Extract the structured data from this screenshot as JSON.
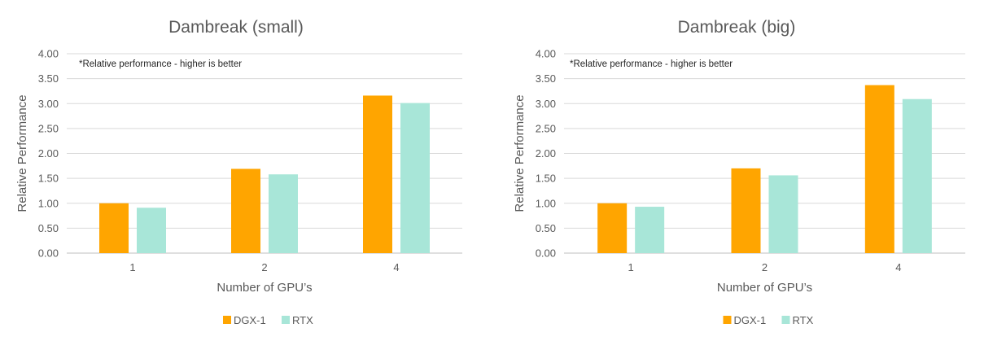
{
  "chart_data": [
    {
      "type": "bar",
      "title": "Dambreak (small)",
      "annotation": "*Relative performance - higher is better",
      "xlabel": "Number of GPU’s",
      "ylabel": "Relative Performance",
      "categories": [
        "1",
        "2",
        "4"
      ],
      "ylim": [
        0,
        4
      ],
      "ytick_step": 0.5,
      "ytick_labels": [
        "0.00",
        "0.50",
        "1.00",
        "1.50",
        "2.00",
        "2.50",
        "3.00",
        "3.50",
        "4.00"
      ],
      "grid": true,
      "legend_position": "bottom",
      "series": [
        {
          "name": "DGX-1",
          "color": "#FFA500",
          "values": [
            1.0,
            1.69,
            3.16
          ]
        },
        {
          "name": "RTX",
          "color": "#A8E6D8",
          "values": [
            0.91,
            1.58,
            3.01
          ]
        }
      ]
    },
    {
      "type": "bar",
      "title": "Dambreak (big)",
      "annotation": "*Relative performance - higher is better",
      "xlabel": "Number of GPU’s",
      "ylabel": "Relative Performance",
      "categories": [
        "1",
        "2",
        "4"
      ],
      "ylim": [
        0,
        4
      ],
      "ytick_step": 0.5,
      "ytick_labels": [
        "0.00",
        "0.50",
        "1.00",
        "1.50",
        "2.00",
        "2.50",
        "3.00",
        "3.50",
        "4.00"
      ],
      "grid": true,
      "legend_position": "bottom",
      "series": [
        {
          "name": "DGX-1",
          "color": "#FFA500",
          "values": [
            1.0,
            1.7,
            3.37
          ]
        },
        {
          "name": "RTX",
          "color": "#A8E6D8",
          "values": [
            0.93,
            1.56,
            3.09
          ]
        }
      ]
    }
  ]
}
